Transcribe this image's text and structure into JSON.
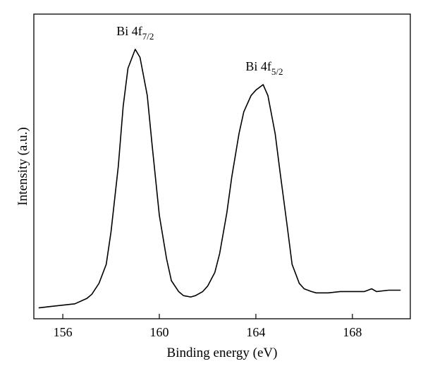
{
  "chart_data": {
    "type": "line",
    "title": "",
    "xlabel": "Binding energy (eV)",
    "ylabel": "Intensity (a.u.)",
    "xlim": [
      154.8,
      170.4
    ],
    "ylim": [
      0,
      1.0
    ],
    "xticks": [
      156,
      160,
      164,
      168
    ],
    "yticks": [],
    "grid": false,
    "legend": "none",
    "line_color": "#000000",
    "annotations": [
      {
        "base": "Bi 4f",
        "sub": "7/2",
        "x": 159.0
      },
      {
        "base": "Bi 4f",
        "sub": "5/2",
        "x": 164.35
      }
    ],
    "series": [
      {
        "x": [
          155.0,
          155.5,
          156.0,
          156.5,
          157.0,
          157.2,
          157.5,
          157.8,
          158.0,
          158.3,
          158.5,
          158.7,
          159.0,
          159.2,
          159.5,
          159.7,
          160.0,
          160.3,
          160.5,
          160.8,
          161.0,
          161.3,
          161.5,
          161.8,
          162.0,
          162.3,
          162.5,
          162.8,
          163.0,
          163.3,
          163.5,
          163.8,
          164.0,
          164.3,
          164.5,
          164.8,
          165.0,
          165.3,
          165.5,
          165.8,
          166.0,
          166.3,
          166.5,
          167.0,
          167.5,
          168.0,
          168.5,
          168.8,
          169.0,
          169.5,
          170.0
        ],
        "y": [
          0.04,
          0.045,
          0.05,
          0.055,
          0.075,
          0.09,
          0.13,
          0.2,
          0.32,
          0.56,
          0.78,
          0.92,
          0.99,
          0.96,
          0.82,
          0.64,
          0.38,
          0.22,
          0.14,
          0.1,
          0.085,
          0.08,
          0.085,
          0.1,
          0.12,
          0.17,
          0.24,
          0.39,
          0.52,
          0.68,
          0.76,
          0.82,
          0.84,
          0.86,
          0.82,
          0.68,
          0.54,
          0.34,
          0.2,
          0.13,
          0.11,
          0.1,
          0.095,
          0.095,
          0.1,
          0.1,
          0.1,
          0.11,
          0.1,
          0.105,
          0.105
        ]
      }
    ]
  }
}
